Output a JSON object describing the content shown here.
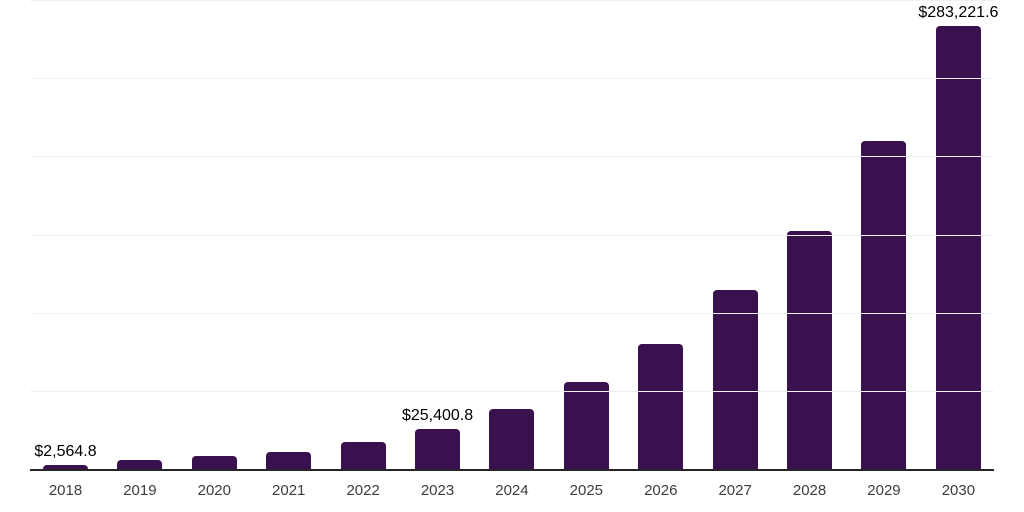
{
  "chart_data": {
    "type": "bar",
    "title": "",
    "xlabel": "",
    "ylabel": "",
    "categories": [
      "2018",
      "2019",
      "2020",
      "2021",
      "2022",
      "2023",
      "2024",
      "2025",
      "2026",
      "2027",
      "2028",
      "2029",
      "2030"
    ],
    "values": [
      2564.8,
      5800,
      8300,
      11200,
      17600,
      25400.8,
      38100,
      56000,
      79700,
      114300,
      152100,
      209700,
      283221.6
    ],
    "value_labels": [
      "$2,564.8",
      null,
      null,
      null,
      null,
      "$25,400.8",
      null,
      null,
      null,
      null,
      null,
      null,
      "$283,221.6"
    ],
    "labeled_years": [
      "2018",
      "2023",
      "2030"
    ],
    "ylim": [
      0,
      300000
    ],
    "gridline_interval": 50000,
    "grid": "horizontal",
    "y_tick_labels": "none",
    "legend": "none",
    "note": "Bars without printed labels are estimated from gridline scale (one faint gridline per 50,000)."
  },
  "colors": {
    "bar": "#38114E",
    "axis_line": "#262626",
    "gridline": "#f0f0f0",
    "tick_label": "#3d3d3d",
    "value_label": "#000000",
    "background": "#ffffff"
  }
}
